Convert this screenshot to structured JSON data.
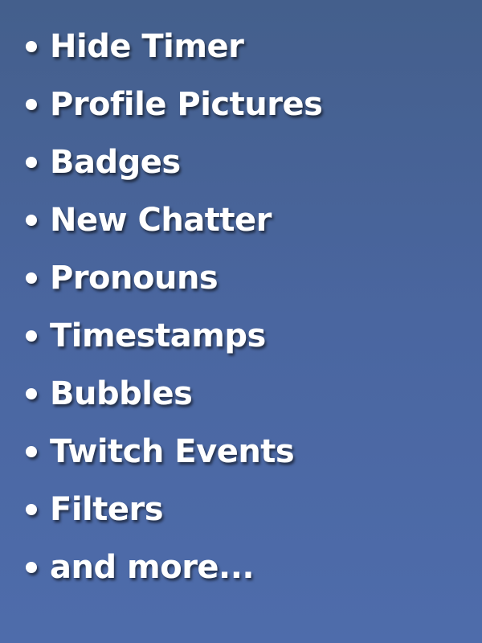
{
  "features": [
    {
      "label": "Hide Timer"
    },
    {
      "label": "Profile Pictures"
    },
    {
      "label": "Badges"
    },
    {
      "label": "New Chatter"
    },
    {
      "label": "Pronouns"
    },
    {
      "label": "Timestamps"
    },
    {
      "label": "Bubbles"
    },
    {
      "label": "Twitch Events"
    },
    {
      "label": "Filters"
    },
    {
      "label": "and more..."
    }
  ],
  "colors": {
    "background_top": "#445f8c",
    "background_bottom": "#4e6cab",
    "text": "#ffffff"
  }
}
